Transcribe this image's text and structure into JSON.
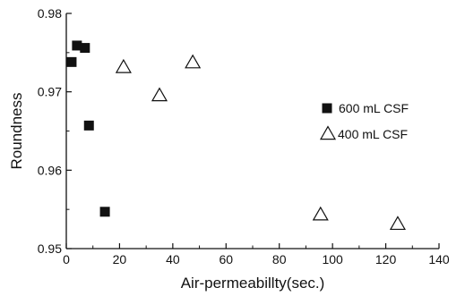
{
  "chart_data": {
    "type": "scatter",
    "title": "",
    "xlabel": "Air-permeabillty(sec.)",
    "ylabel": "Roundness",
    "xlim": [
      0,
      140
    ],
    "ylim": [
      0.95,
      0.98
    ],
    "x_ticks": [
      0,
      20,
      40,
      60,
      80,
      100,
      120,
      140
    ],
    "y_ticks": [
      0.95,
      0.96,
      0.97,
      0.98
    ],
    "x_tick_labels": [
      "0",
      "20",
      "40",
      "60",
      "80",
      "100",
      "120",
      "140"
    ],
    "y_tick_labels": [
      "0.95",
      "0.96",
      "0.97",
      "0.98"
    ],
    "legend_position": "right",
    "series": [
      {
        "name": "600 mL CSF",
        "marker": "filled-square",
        "color": "#111111",
        "points": [
          {
            "x": 2,
            "y": 0.9738
          },
          {
            "x": 4,
            "y": 0.9759
          },
          {
            "x": 7,
            "y": 0.9756
          },
          {
            "x": 8.5,
            "y": 0.9657
          },
          {
            "x": 14.5,
            "y": 0.9547
          }
        ]
      },
      {
        "name": "400 mL CSF",
        "marker": "open-triangle",
        "color": "#111111",
        "points": [
          {
            "x": 21.5,
            "y": 0.9731
          },
          {
            "x": 35,
            "y": 0.9695
          },
          {
            "x": 47.5,
            "y": 0.9737
          },
          {
            "x": 95.5,
            "y": 0.9543
          },
          {
            "x": 124.5,
            "y": 0.9531
          }
        ]
      }
    ]
  }
}
